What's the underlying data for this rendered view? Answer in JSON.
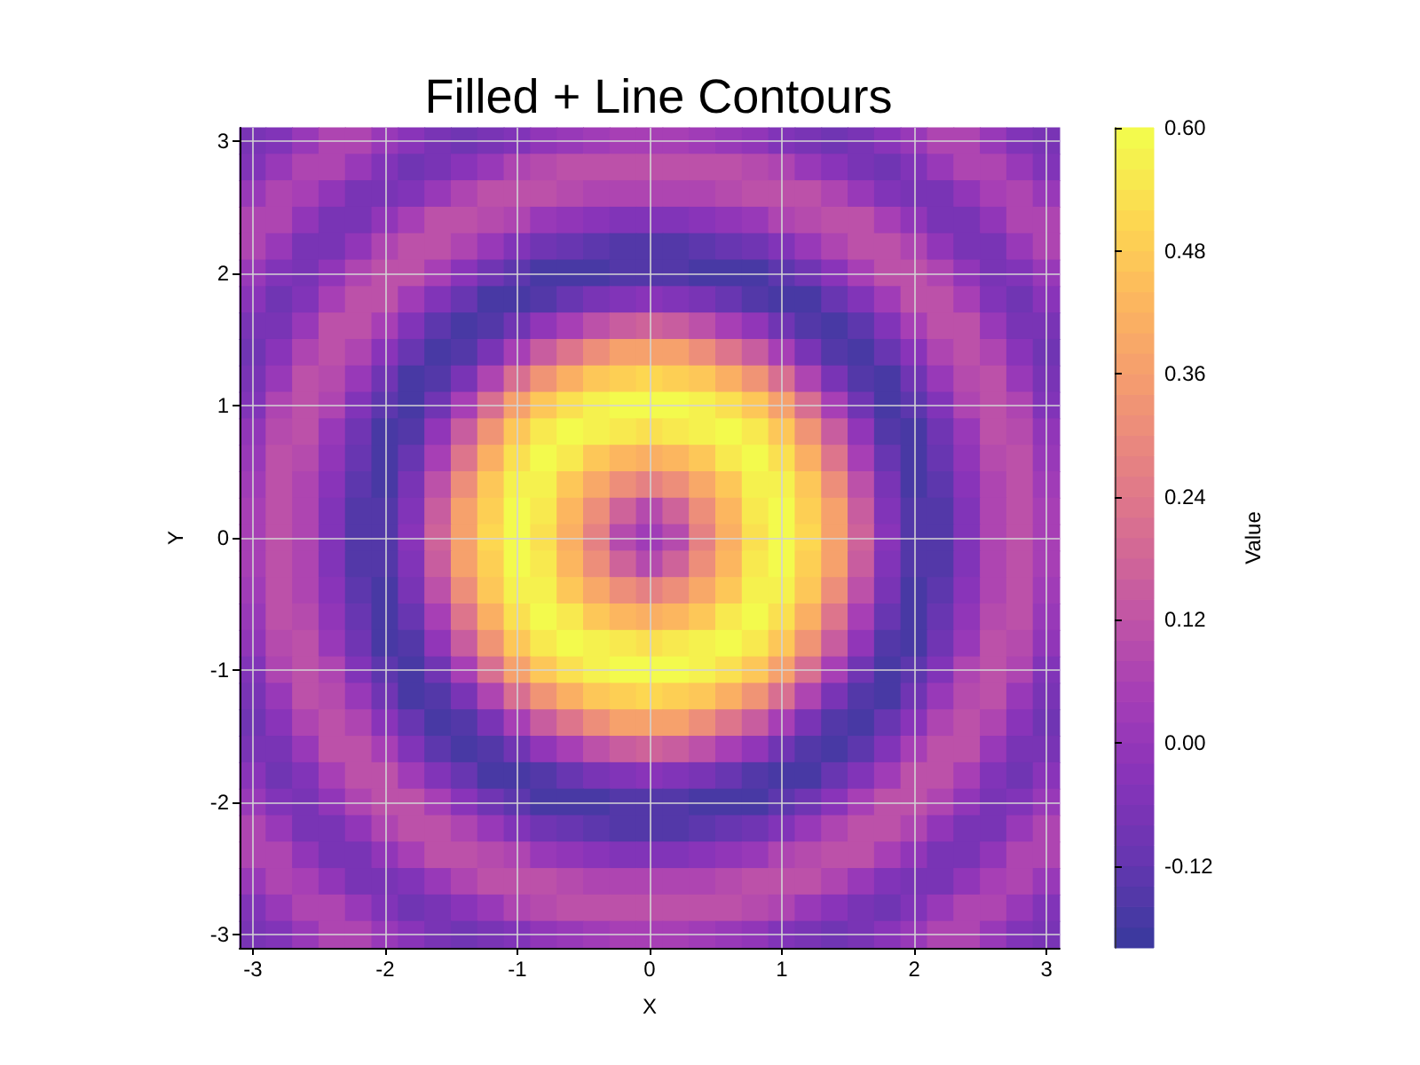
{
  "chart_data": {
    "type": "heatmap",
    "title": "Filled + Line Contours",
    "xlabel": "X",
    "ylabel": "Y",
    "clabel": "Value",
    "categories": [
      "-3",
      null,
      null,
      null,
      null,
      "-2",
      null,
      null,
      null,
      null,
      "-1",
      null,
      null,
      null,
      null,
      "0",
      null,
      null,
      null,
      null,
      "1",
      null,
      null,
      null,
      null,
      "2",
      null,
      null,
      null,
      null,
      "3"
    ],
    "y_categories": [
      "3",
      null,
      null,
      null,
      null,
      "2",
      null,
      null,
      null,
      null,
      "1",
      null,
      null,
      null,
      null,
      "0",
      null,
      null,
      null,
      null,
      "-1",
      null,
      null,
      null,
      null,
      "-2",
      null,
      null,
      null,
      null,
      "-3"
    ],
    "cells": [
      [
        -0.07,
        -0.05,
        0.01,
        0.06,
        0.06,
        0.02,
        -0.03,
        -0.08,
        -0.09,
        -0.07,
        -0.04,
        -0.01,
        0.01,
        0.03,
        0.05,
        0.05,
        0.05,
        0.03,
        0.01,
        -0.01,
        -0.04,
        -0.07,
        -0.09,
        -0.08,
        -0.03,
        0.02,
        0.06,
        0.06,
        0.01,
        -0.05,
        -0.07
      ],
      [
        -0.05,
        0.01,
        0.06,
        0.06,
        0,
        -0.06,
        -0.09,
        -0.07,
        -0.03,
        0.02,
        0.06,
        0.09,
        0.11,
        0.11,
        0.12,
        0.12,
        0.12,
        0.11,
        0.11,
        0.09,
        0.06,
        0.02,
        -0.03,
        -0.07,
        -0.09,
        -0.06,
        0,
        0.06,
        0.06,
        0.01,
        -0.05
      ],
      [
        0.01,
        0.06,
        0.05,
        -0.01,
        -0.08,
        -0.08,
        -0.04,
        0.02,
        0.07,
        0.11,
        0.12,
        0.1,
        0.09,
        0.07,
        0.06,
        0.06,
        0.06,
        0.07,
        0.09,
        0.1,
        0.12,
        0.11,
        0.07,
        0.02,
        -0.04,
        -0.08,
        -0.08,
        -0.01,
        0.05,
        0.06,
        0.01
      ],
      [
        0.06,
        0.06,
        -0.01,
        -0.08,
        -0.08,
        -0.02,
        0.05,
        0.1,
        0.12,
        0.09,
        0.06,
        0.02,
        -0.01,
        -0.03,
        -0.05,
        -0.05,
        -0.05,
        -0.03,
        -0.01,
        0.02,
        0.06,
        0.09,
        0.12,
        0.1,
        0.05,
        -0.02,
        -0.08,
        -0.08,
        -0.01,
        0.06,
        0.06
      ],
      [
        0.06,
        0,
        -0.08,
        -0.08,
        -0.02,
        0.06,
        0.11,
        0.1,
        0.06,
        0,
        -0.04,
        -0.09,
        -0.12,
        -0.14,
        -0.16,
        -0.16,
        -0.16,
        -0.14,
        -0.12,
        -0.09,
        -0.04,
        0,
        0.06,
        0.1,
        0.11,
        0.06,
        -0.02,
        -0.08,
        -0.08,
        0,
        0.06
      ],
      [
        0.02,
        -0.06,
        -0.08,
        -0.02,
        0.06,
        0.11,
        0.1,
        0.04,
        -0.03,
        -0.09,
        -0.14,
        -0.17,
        -0.18,
        -0.17,
        -0.16,
        -0.16,
        -0.16,
        -0.17,
        -0.18,
        -0.17,
        -0.14,
        -0.09,
        -0.03,
        0.04,
        0.1,
        0.11,
        0.06,
        -0.02,
        -0.08,
        -0.06,
        0.02
      ],
      [
        -0.03,
        -0.09,
        -0.04,
        0.05,
        0.11,
        0.1,
        0.03,
        -0.05,
        -0.12,
        -0.17,
        -0.17,
        -0.15,
        -0.11,
        -0.07,
        -0.04,
        -0.03,
        -0.04,
        -0.07,
        -0.11,
        -0.15,
        -0.17,
        -0.17,
        -0.12,
        -0.05,
        0.03,
        0.1,
        0.11,
        0.05,
        -0.04,
        -0.09,
        -0.03
      ],
      [
        -0.08,
        -0.07,
        0.02,
        0.1,
        0.1,
        0.04,
        -0.05,
        -0.13,
        -0.17,
        -0.16,
        -0.1,
        -0.02,
        0.05,
        0.11,
        0.15,
        0.16,
        0.15,
        0.11,
        0.05,
        -0.02,
        -0.1,
        -0.16,
        -0.17,
        -0.13,
        -0.05,
        0.04,
        0.1,
        0.1,
        0.02,
        -0.07,
        -0.08
      ],
      [
        -0.09,
        -0.03,
        0.07,
        0.12,
        0.06,
        -0.03,
        -0.12,
        -0.17,
        -0.15,
        -0.07,
        0.04,
        0.15,
        0.24,
        0.31,
        0.36,
        0.37,
        0.36,
        0.31,
        0.24,
        0.15,
        0.04,
        -0.07,
        -0.15,
        -0.17,
        -0.12,
        -0.03,
        0.06,
        0.12,
        0.07,
        -0.03,
        -0.09
      ],
      [
        -0.07,
        0.02,
        0.11,
        0.09,
        0,
        -0.09,
        -0.17,
        -0.16,
        -0.07,
        0.06,
        0.2,
        0.33,
        0.42,
        0.47,
        0.5,
        0.51,
        0.5,
        0.47,
        0.42,
        0.33,
        0.2,
        0.06,
        -0.07,
        -0.16,
        -0.17,
        -0.09,
        0,
        0.09,
        0.11,
        0.02,
        -0.07
      ],
      [
        -0.04,
        0.06,
        0.12,
        0.06,
        -0.04,
        -0.14,
        -0.17,
        -0.1,
        0.04,
        0.2,
        0.36,
        0.46,
        0.53,
        0.56,
        0.58,
        0.58,
        0.58,
        0.56,
        0.53,
        0.46,
        0.36,
        0.2,
        0.04,
        -0.1,
        -0.17,
        -0.14,
        -0.04,
        0.06,
        0.12,
        0.06,
        -0.04
      ],
      [
        -0.01,
        0.09,
        0.1,
        0.02,
        -0.09,
        -0.17,
        -0.15,
        -0.02,
        0.15,
        0.33,
        0.46,
        0.54,
        0.58,
        0.57,
        0.54,
        0.53,
        0.54,
        0.57,
        0.58,
        0.54,
        0.46,
        0.33,
        0.15,
        -0.02,
        -0.15,
        -0.17,
        -0.09,
        0.02,
        0.1,
        0.09,
        -0.01
      ],
      [
        0.01,
        0.11,
        0.09,
        -0.01,
        -0.12,
        -0.18,
        -0.11,
        0.05,
        0.24,
        0.42,
        0.53,
        0.58,
        0.55,
        0.48,
        0.43,
        0.41,
        0.43,
        0.48,
        0.55,
        0.58,
        0.53,
        0.42,
        0.24,
        0.05,
        -0.11,
        -0.18,
        -0.12,
        -0.01,
        0.09,
        0.11,
        0.01
      ],
      [
        0.03,
        0.11,
        0.07,
        -0.03,
        -0.14,
        -0.17,
        -0.07,
        0.11,
        0.31,
        0.47,
        0.56,
        0.57,
        0.48,
        0.39,
        0.31,
        0.27,
        0.31,
        0.39,
        0.48,
        0.57,
        0.56,
        0.47,
        0.31,
        0.11,
        -0.07,
        -0.17,
        -0.14,
        -0.03,
        0.07,
        0.11,
        0.03
      ],
      [
        0.05,
        0.12,
        0.06,
        -0.05,
        -0.16,
        -0.16,
        -0.04,
        0.15,
        0.36,
        0.5,
        0.58,
        0.54,
        0.43,
        0.31,
        0.16,
        0.09,
        0.16,
        0.31,
        0.43,
        0.54,
        0.58,
        0.5,
        0.36,
        0.15,
        -0.04,
        -0.16,
        -0.16,
        -0.05,
        0.06,
        0.12,
        0.05
      ],
      [
        0.05,
        0.12,
        0.06,
        -0.05,
        -0.16,
        -0.16,
        -0.03,
        0.16,
        0.37,
        0.51,
        0.58,
        0.53,
        0.41,
        0.27,
        0.09,
        0.03,
        0.09,
        0.27,
        0.41,
        0.53,
        0.58,
        0.51,
        0.37,
        0.16,
        -0.03,
        -0.16,
        -0.16,
        -0.05,
        0.06,
        0.12,
        0.05
      ],
      [
        0.05,
        0.12,
        0.06,
        -0.05,
        -0.16,
        -0.16,
        -0.04,
        0.15,
        0.36,
        0.5,
        0.58,
        0.54,
        0.43,
        0.31,
        0.16,
        0.09,
        0.16,
        0.31,
        0.43,
        0.54,
        0.58,
        0.5,
        0.36,
        0.15,
        -0.04,
        -0.16,
        -0.16,
        -0.05,
        0.06,
        0.12,
        0.05
      ],
      [
        0.03,
        0.11,
        0.07,
        -0.03,
        -0.14,
        -0.17,
        -0.07,
        0.11,
        0.31,
        0.47,
        0.56,
        0.57,
        0.48,
        0.39,
        0.31,
        0.27,
        0.31,
        0.39,
        0.48,
        0.57,
        0.56,
        0.47,
        0.31,
        0.11,
        -0.07,
        -0.17,
        -0.14,
        -0.03,
        0.07,
        0.11,
        0.03
      ],
      [
        0.01,
        0.11,
        0.09,
        -0.01,
        -0.12,
        -0.18,
        -0.11,
        0.05,
        0.24,
        0.42,
        0.53,
        0.58,
        0.55,
        0.48,
        0.43,
        0.41,
        0.43,
        0.48,
        0.55,
        0.58,
        0.53,
        0.42,
        0.24,
        0.05,
        -0.11,
        -0.18,
        -0.12,
        -0.01,
        0.09,
        0.11,
        0.01
      ],
      [
        -0.01,
        0.09,
        0.1,
        0.02,
        -0.09,
        -0.17,
        -0.15,
        -0.02,
        0.15,
        0.33,
        0.46,
        0.54,
        0.58,
        0.57,
        0.54,
        0.53,
        0.54,
        0.57,
        0.58,
        0.54,
        0.46,
        0.33,
        0.15,
        -0.02,
        -0.15,
        -0.17,
        -0.09,
        0.02,
        0.1,
        0.09,
        -0.01
      ],
      [
        -0.04,
        0.06,
        0.12,
        0.06,
        -0.04,
        -0.14,
        -0.17,
        -0.1,
        0.04,
        0.2,
        0.36,
        0.46,
        0.53,
        0.56,
        0.58,
        0.58,
        0.58,
        0.56,
        0.53,
        0.46,
        0.36,
        0.2,
        0.04,
        -0.1,
        -0.17,
        -0.14,
        -0.04,
        0.06,
        0.12,
        0.06,
        -0.04
      ],
      [
        -0.07,
        0.02,
        0.11,
        0.09,
        0,
        -0.09,
        -0.17,
        -0.16,
        -0.07,
        0.06,
        0.2,
        0.33,
        0.42,
        0.47,
        0.5,
        0.51,
        0.5,
        0.47,
        0.42,
        0.33,
        0.2,
        0.06,
        -0.07,
        -0.16,
        -0.17,
        -0.09,
        0,
        0.09,
        0.11,
        0.02,
        -0.07
      ],
      [
        -0.09,
        -0.03,
        0.07,
        0.12,
        0.06,
        -0.03,
        -0.12,
        -0.17,
        -0.15,
        -0.07,
        0.04,
        0.15,
        0.24,
        0.31,
        0.36,
        0.37,
        0.36,
        0.31,
        0.24,
        0.15,
        0.04,
        -0.07,
        -0.15,
        -0.17,
        -0.12,
        -0.03,
        0.06,
        0.12,
        0.07,
        -0.03,
        -0.09
      ],
      [
        -0.08,
        -0.07,
        0.02,
        0.1,
        0.1,
        0.04,
        -0.05,
        -0.13,
        -0.17,
        -0.16,
        -0.1,
        -0.02,
        0.05,
        0.11,
        0.15,
        0.16,
        0.15,
        0.11,
        0.05,
        -0.02,
        -0.1,
        -0.16,
        -0.17,
        -0.13,
        -0.05,
        0.04,
        0.1,
        0.1,
        0.02,
        -0.07,
        -0.08
      ],
      [
        -0.03,
        -0.09,
        -0.04,
        0.05,
        0.11,
        0.1,
        0.03,
        -0.05,
        -0.12,
        -0.17,
        -0.17,
        -0.15,
        -0.11,
        -0.07,
        -0.04,
        -0.03,
        -0.04,
        -0.07,
        -0.11,
        -0.15,
        -0.17,
        -0.17,
        -0.12,
        -0.05,
        0.03,
        0.1,
        0.11,
        0.05,
        -0.04,
        -0.09,
        -0.03
      ],
      [
        0.02,
        -0.06,
        -0.08,
        -0.02,
        0.06,
        0.11,
        0.1,
        0.04,
        -0.03,
        -0.09,
        -0.14,
        -0.17,
        -0.18,
        -0.17,
        -0.16,
        -0.16,
        -0.16,
        -0.17,
        -0.18,
        -0.17,
        -0.14,
        -0.09,
        -0.03,
        0.04,
        0.1,
        0.11,
        0.06,
        -0.02,
        -0.08,
        -0.06,
        0.02
      ],
      [
        0.06,
        0,
        -0.08,
        -0.08,
        -0.02,
        0.06,
        0.11,
        0.1,
        0.06,
        0,
        -0.04,
        -0.09,
        -0.12,
        -0.14,
        -0.16,
        -0.16,
        -0.16,
        -0.14,
        -0.12,
        -0.09,
        -0.04,
        0,
        0.06,
        0.1,
        0.11,
        0.06,
        -0.02,
        -0.08,
        -0.08,
        0,
        0.06
      ],
      [
        0.06,
        0.06,
        -0.01,
        -0.08,
        -0.08,
        -0.02,
        0.05,
        0.1,
        0.12,
        0.09,
        0.06,
        0.02,
        -0.01,
        -0.03,
        -0.05,
        -0.05,
        -0.05,
        -0.03,
        -0.01,
        0.02,
        0.06,
        0.09,
        0.12,
        0.1,
        0.05,
        -0.02,
        -0.08,
        -0.08,
        -0.01,
        0.06,
        0.06
      ],
      [
        0.01,
        0.06,
        0.05,
        -0.01,
        -0.08,
        -0.08,
        -0.04,
        0.02,
        0.07,
        0.11,
        0.12,
        0.1,
        0.09,
        0.07,
        0.06,
        0.06,
        0.06,
        0.07,
        0.09,
        0.1,
        0.12,
        0.11,
        0.07,
        0.02,
        -0.04,
        -0.08,
        -0.08,
        -0.01,
        0.05,
        0.06,
        0.01
      ],
      [
        -0.05,
        0.01,
        0.06,
        0.06,
        0,
        -0.06,
        -0.09,
        -0.07,
        -0.03,
        0.02,
        0.06,
        0.09,
        0.11,
        0.11,
        0.12,
        0.12,
        0.12,
        0.11,
        0.11,
        0.09,
        0.06,
        0.02,
        -0.03,
        -0.07,
        -0.09,
        -0.06,
        0,
        0.06,
        0.06,
        0.01,
        -0.05
      ],
      [
        -0.07,
        -0.05,
        0.01,
        0.06,
        0.06,
        0.02,
        -0.03,
        -0.08,
        -0.09,
        -0.07,
        -0.04,
        -0.01,
        0.01,
        0.03,
        0.05,
        0.05,
        0.05,
        0.03,
        0.01,
        -0.01,
        -0.04,
        -0.07,
        -0.09,
        -0.08,
        -0.03,
        0.02,
        0.06,
        0.06,
        0.01,
        -0.05,
        -0.07
      ]
    ],
    "clim": [
      -0.2,
      0.6
    ],
    "cticks": [
      -0.12,
      {
        "value": 0,
        "label": "0.00"
      },
      0.12,
      0.24,
      0.36,
      0.48,
      {
        "value": 0.6,
        "label": "0.60"
      }
    ],
    "grid": true
  }
}
